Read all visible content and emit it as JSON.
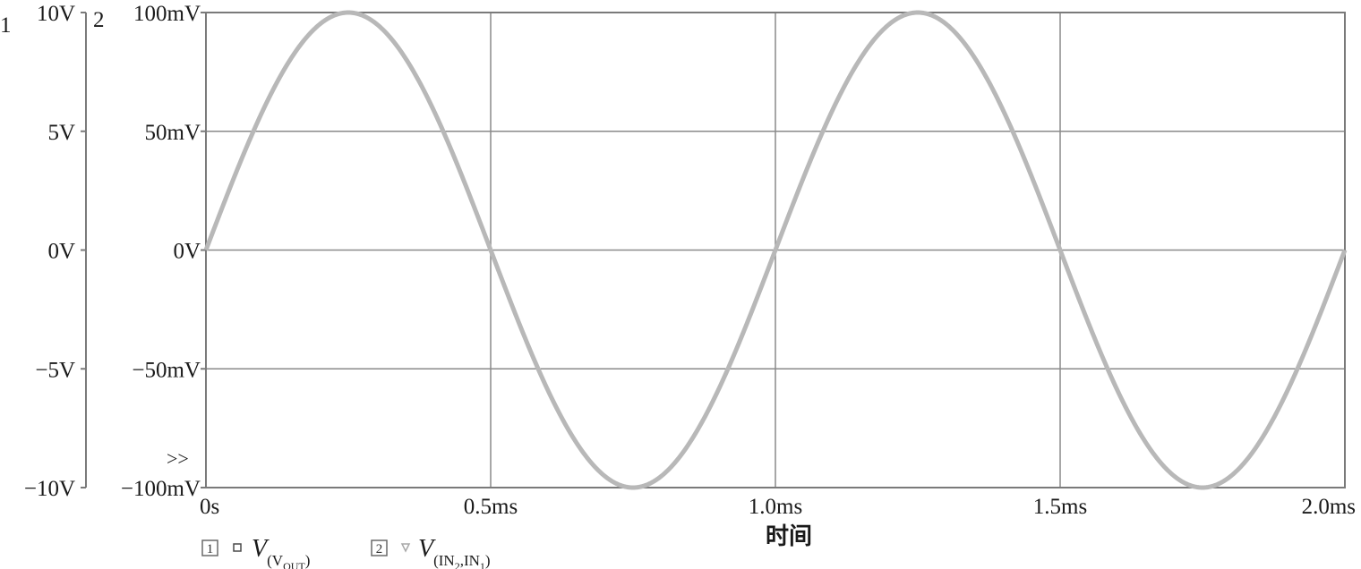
{
  "chart_data": {
    "type": "line",
    "xlabel": "时间",
    "x_ticks": [
      "0s",
      "0.5ms",
      "1.0ms",
      "1.5ms",
      "2.0ms"
    ],
    "xlim_ms": [
      0,
      2.0
    ],
    "axes": [
      {
        "id": "1",
        "ticks": [
          "10V",
          "5V",
          "0V",
          "−5V",
          "−10V"
        ],
        "ylim": [
          -10,
          10
        ],
        "unit": "V"
      },
      {
        "id": "2",
        "ticks": [
          "100mV",
          "50mV",
          "0V",
          "−50mV",
          "−100mV"
        ],
        "ylim": [
          -100,
          100
        ],
        "unit": "mV"
      }
    ],
    "grid": true,
    "marker_symbol": ">>",
    "series": [
      {
        "legend_index": "1",
        "name_main": "V",
        "name_sub": "(V",
        "name_subsub": "OUT",
        "name_tail": ")",
        "axis": "1",
        "color": "#4a4a4a",
        "amplitude": 10,
        "frequency_hz": 1000,
        "phase": "sine",
        "width": 3
      },
      {
        "legend_index": "2",
        "name_main": "V",
        "name_sub": "(IN",
        "name_sub_a": "2",
        "name_mid": ",IN",
        "name_sub_b": "1",
        "name_tail": ")",
        "axis": "2",
        "color": "#b8b8b8",
        "amplitude": 100,
        "frequency_hz": 1000,
        "phase": "sine",
        "width": 5
      }
    ]
  }
}
